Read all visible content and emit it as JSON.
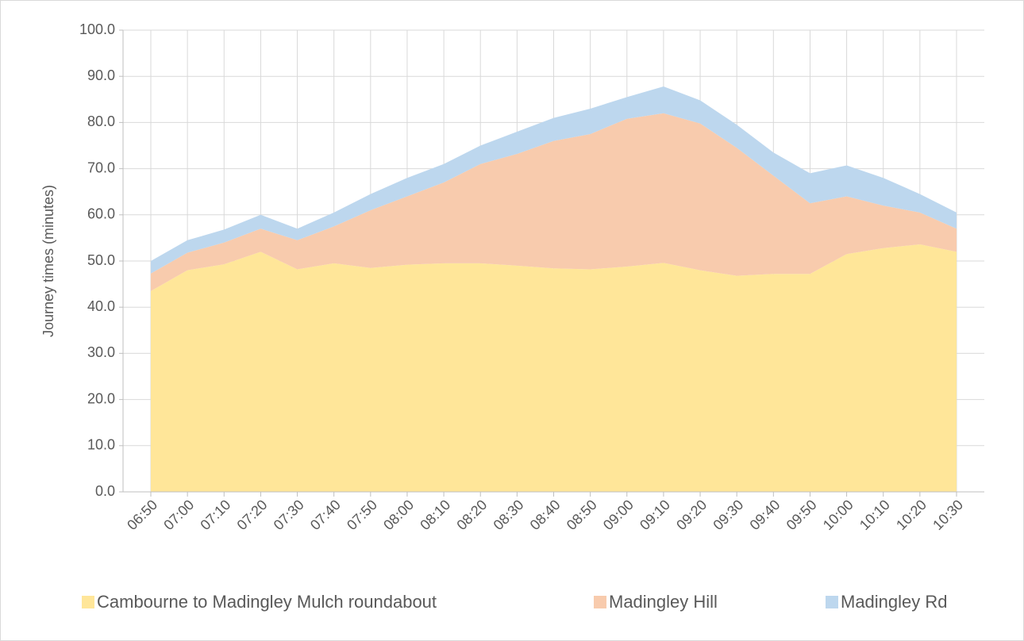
{
  "chart_data": {
    "type": "stacked-area",
    "y_label": "Journey times (minutes)",
    "categories": [
      "06:50",
      "07:00",
      "07:10",
      "07:20",
      "07:30",
      "07:40",
      "07:50",
      "08:00",
      "08:10",
      "08:20",
      "08:30",
      "08:40",
      "08:50",
      "09:00",
      "09:10",
      "09:20",
      "09:30",
      "09:40",
      "09:50",
      "10:00",
      "10:10",
      "10:20",
      "10:30"
    ],
    "series": [
      {
        "name": "Cambourne to Madingley Mulch roundabout",
        "color": "#ffe699",
        "values": [
          43.5,
          48,
          49.3,
          52,
          48.2,
          49.5,
          48.5,
          49.2,
          49.5,
          49.5,
          49,
          48.4,
          48.2,
          48.8,
          49.6,
          48,
          46.8,
          47.2,
          47.2,
          51.5,
          52.8,
          53.6,
          52
        ]
      },
      {
        "name": "Madingley Hill",
        "color": "#f8cbad",
        "values": [
          3.8,
          3.8,
          4.7,
          5,
          6.3,
          8,
          12.5,
          14.8,
          17.5,
          21.5,
          24.2,
          27.6,
          29.3,
          32,
          32.4,
          31.8,
          27.7,
          21.3,
          15.3,
          12.5,
          9.2,
          6.9,
          5
        ]
      },
      {
        "name": "Madingley Rd",
        "color": "#bdd7ee",
        "values": [
          2.7,
          2.7,
          2.8,
          3,
          2.5,
          3,
          3.5,
          4,
          4,
          4,
          4.8,
          5,
          5.5,
          4.7,
          5.8,
          5,
          5,
          5,
          6.5,
          6.7,
          6,
          4,
          3.5
        ]
      }
    ],
    "ylim": [
      0,
      100
    ],
    "yticks": [
      {
        "value": 0,
        "label": "0.0"
      },
      {
        "value": 10,
        "label": "10.0"
      },
      {
        "value": 20,
        "label": "20.0"
      },
      {
        "value": 30,
        "label": "30.0"
      },
      {
        "value": 40,
        "label": "40.0"
      },
      {
        "value": 50,
        "label": "50.0"
      },
      {
        "value": 60,
        "label": "60.0"
      },
      {
        "value": 70,
        "label": "70.0"
      },
      {
        "value": 80,
        "label": "80.0"
      },
      {
        "value": 90,
        "label": "90.0"
      },
      {
        "value": 100,
        "label": "100.0"
      }
    ],
    "grid": true,
    "legend": "bottom"
  }
}
